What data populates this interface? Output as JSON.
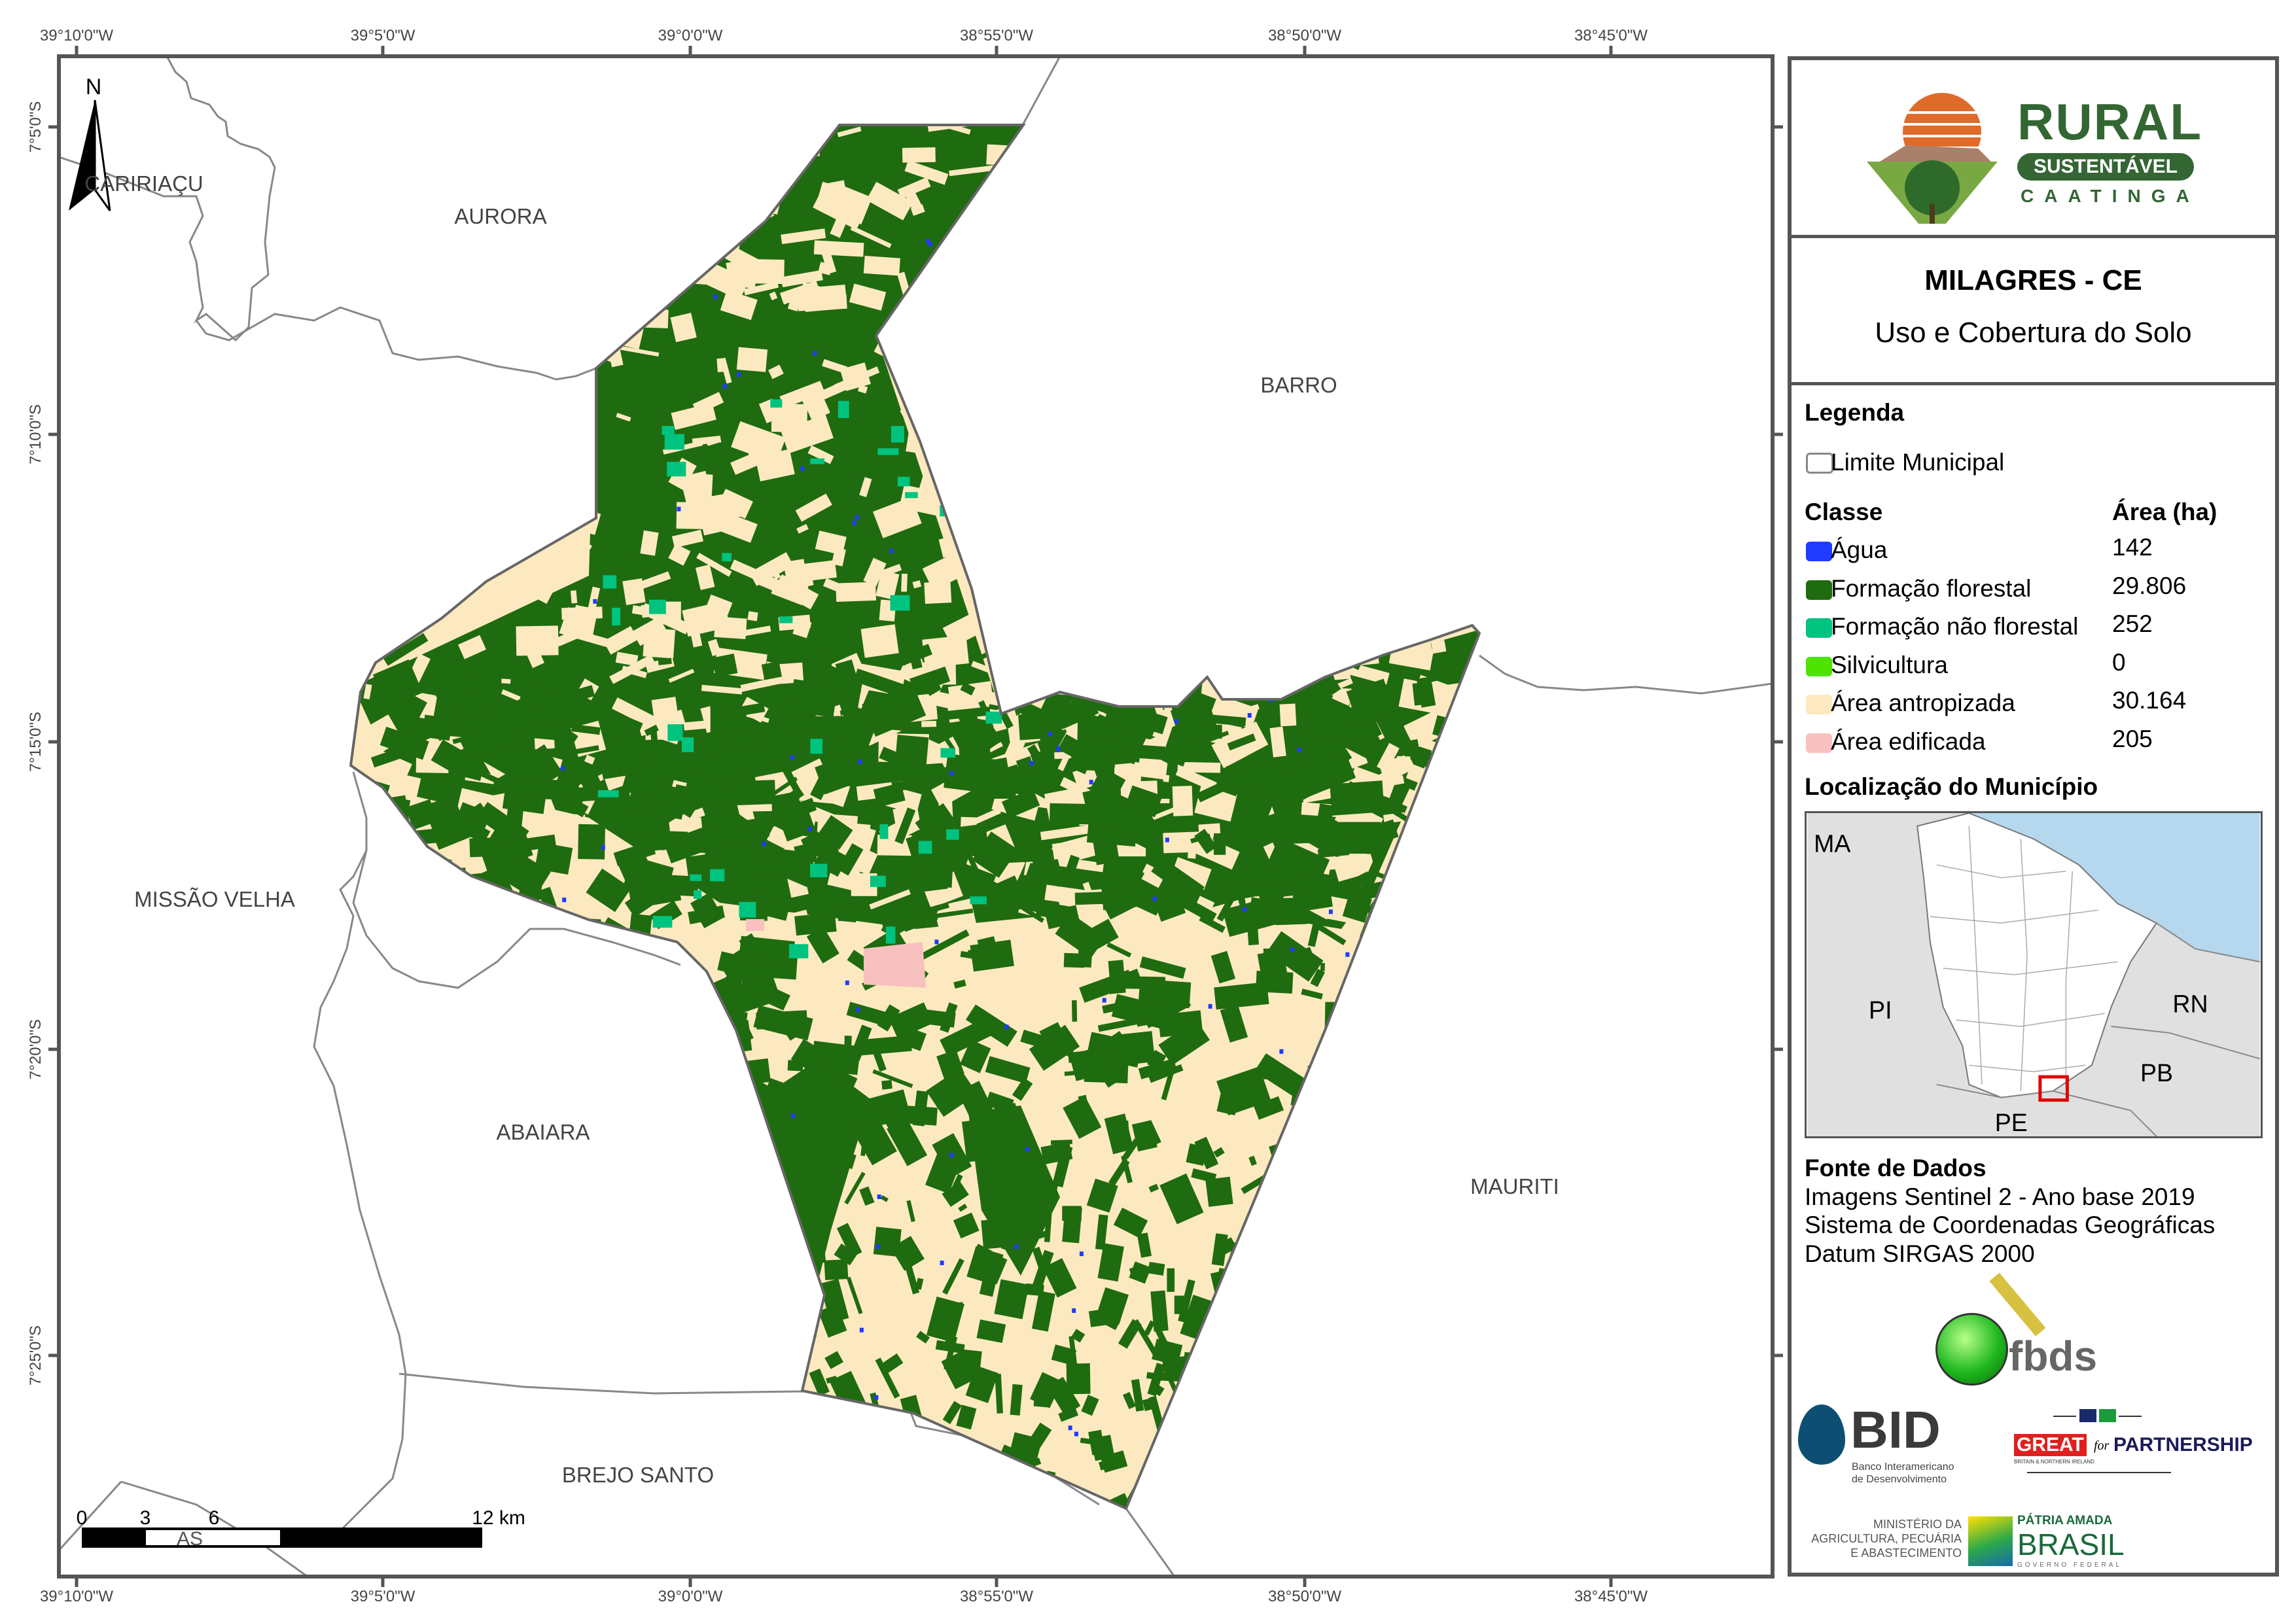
{
  "map": {
    "top_coords": [
      "39°10'0\"W",
      "39°5'0\"W",
      "39°0'0\"W",
      "38°55'0\"W",
      "38°50'0\"W",
      "38°45'0\"W"
    ],
    "bottom_coords": [
      "39°10'0\"W",
      "39°5'0\"W",
      "39°0'0\"W",
      "38°55'0\"W",
      "38°50'0\"W",
      "38°45'0\"W"
    ],
    "left_coords": [
      "7°5'0\"S",
      "7°10'0\"S",
      "7°15'0\"S",
      "7°20'0\"S",
      "7°25'0\"S"
    ],
    "north_label": "N",
    "municipalities": [
      "CARIRIAÇU",
      "AURORA",
      "BARRO",
      "MISSÃO VELHA",
      "ABAIARA",
      "MAURITI",
      "BREJO SANTO"
    ],
    "scale_bar": {
      "ticks": [
        "0",
        "3",
        "6",
        "12 km"
      ],
      "overlay_text": "AS"
    }
  },
  "panel": {
    "logo": {
      "line1": "RURAL",
      "line2": "SUSTENTÁVEL",
      "line3": "CAATINGA"
    },
    "title": "MILAGRES - CE",
    "subtitle": "Uso e Cobertura do Solo",
    "legend_title": "Legenda",
    "boundary_label": "Limite Municipal",
    "class_header": "Classe",
    "area_header": "Área (ha)",
    "classes": [
      {
        "label": "Água",
        "area": "142",
        "color": "#1f3bff"
      },
      {
        "label": "Formação florestal",
        "area": "29.806",
        "color": "#1f6b0f"
      },
      {
        "label": "Formação não florestal",
        "area": "252",
        "color": "#00c37f"
      },
      {
        "label": "Silvicultura",
        "area": "0",
        "color": "#4ee400"
      },
      {
        "label": "Área antropizada",
        "area": "30.164",
        "color": "#fde9c0"
      },
      {
        "label": "Área edificada",
        "area": "205",
        "color": "#f9c0c0"
      }
    ],
    "location_title": "Localização do Município",
    "inset_labels": [
      "MA",
      "PI",
      "RN",
      "PB",
      "PE"
    ],
    "source_title": "Fonte de Dados",
    "source_lines": [
      "Imagens Sentinel 2 - Ano base 2019",
      "Sistema de Coordenadas Geográficas",
      "Datum SIRGAS 2000"
    ],
    "partners": {
      "fbds": "fbds",
      "bid": "BID",
      "bid_sub1": "Banco Interamericano",
      "bid_sub2": "de Desenvolvimento",
      "great": "GREAT",
      "great_for": "for",
      "great_partnership": "PARTNERSHIP",
      "great_sub": "BRITAIN & NORTHERN IRELAND",
      "min1": "MINISTÉRIO DA",
      "min2": "AGRICULTURA, PECUÁRIA",
      "min3": "E ABASTECIMENTO",
      "br1": "PÁTRIA AMADA",
      "br2": "BRASIL",
      "br3": "GOVERNO FEDERAL"
    }
  }
}
